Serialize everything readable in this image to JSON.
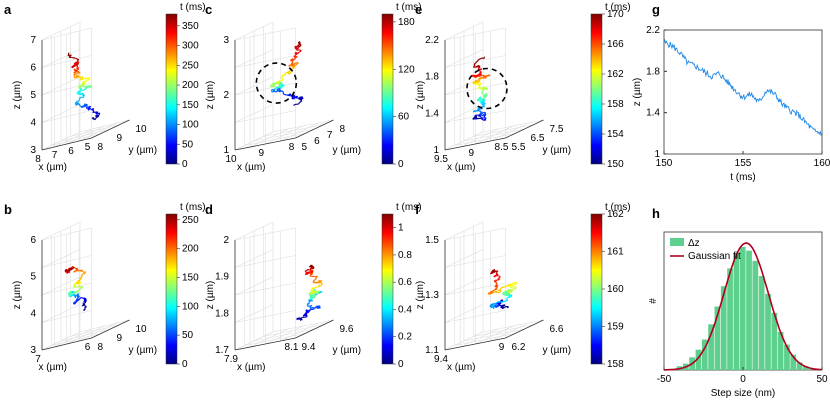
{
  "figure": {
    "panels": [
      "a",
      "b",
      "c",
      "d",
      "e",
      "f",
      "g",
      "h"
    ],
    "colormap": [
      "#00007f",
      "#0000ff",
      "#007fff",
      "#00ffff",
      "#7fff7f",
      "#ffff00",
      "#ff7f00",
      "#ff0000",
      "#7f0000"
    ],
    "circle_color": "#000000",
    "blue_line": "#1e88e5",
    "green_bar": "#5cd08c",
    "red_fit": "#b00020"
  },
  "chart_data": [
    {
      "panel": "a",
      "type": "line3d",
      "axes": {
        "x": {
          "label": "x (µm)",
          "ticks": [
            "5",
            "6",
            "7",
            "8"
          ]
        },
        "y": {
          "label": "y (µm)",
          "ticks": [
            "8",
            "9",
            "10"
          ]
        },
        "z": {
          "label": "z (µm)",
          "ticks": [
            "3",
            "4",
            "5",
            "6",
            "7"
          ]
        }
      },
      "colorbar": {
        "title": "t (ms)",
        "ticks": [
          "0",
          "50",
          "100",
          "150",
          "200",
          "250",
          "300",
          "350"
        ],
        "range": [
          0,
          380
        ]
      },
      "trajectory_seed": 11
    },
    {
      "panel": "b",
      "type": "line3d",
      "axes": {
        "x": {
          "label": "x (µm)",
          "ticks": [
            "6",
            "7"
          ]
        },
        "y": {
          "label": "y (µm)",
          "ticks": [
            "8",
            "9",
            "10"
          ]
        },
        "z": {
          "label": "z (µm)",
          "ticks": [
            "3",
            "4",
            "5",
            "6"
          ]
        }
      },
      "colorbar": {
        "title": "t (ms)",
        "ticks": [
          "0",
          "50",
          "100",
          "150",
          "200",
          "250"
        ],
        "range": [
          0,
          260
        ]
      },
      "trajectory_seed": 23
    },
    {
      "panel": "c",
      "type": "line3d",
      "axes": {
        "x": {
          "label": "x (µm)",
          "ticks": [
            "8",
            "9",
            "10"
          ]
        },
        "y": {
          "label": "y (µm)",
          "ticks": [
            "5",
            "6",
            "7",
            "8"
          ]
        },
        "z": {
          "label": "z (µm)",
          "ticks": [
            "1",
            "2",
            "3"
          ]
        }
      },
      "colorbar": {
        "title": "t (ms)",
        "ticks": [
          "0",
          "60",
          "120",
          "180"
        ],
        "range": [
          0,
          190
        ]
      },
      "highlight_circle": true,
      "trajectory_seed": 37
    },
    {
      "panel": "d",
      "type": "line3d",
      "axes": {
        "x": {
          "label": "x (µm)",
          "ticks": [
            "8.1",
            "7.9"
          ]
        },
        "y": {
          "label": "y (µm)",
          "ticks": [
            "9.4",
            "9.6"
          ]
        },
        "z": {
          "label": "z (µm)",
          "ticks": [
            "1.7",
            "1.8",
            "1.9",
            "2"
          ]
        }
      },
      "colorbar": {
        "title": "t (ms)",
        "ticks": [
          "0",
          "0.2",
          "0.4",
          "0.6",
          "0.8",
          "1"
        ],
        "range": [
          0,
          1.1
        ]
      },
      "trajectory_seed": 41
    },
    {
      "panel": "e",
      "type": "line3d",
      "axes": {
        "x": {
          "label": "x (µm)",
          "ticks": [
            "8.5",
            "9",
            "9.5"
          ]
        },
        "y": {
          "label": "y (µm)",
          "ticks": [
            "5.5",
            "6.5",
            "7.5"
          ]
        },
        "z": {
          "label": "z (µm)",
          "ticks": [
            "1",
            "1.4",
            "1.8",
            "2.2"
          ]
        }
      },
      "colorbar": {
        "title": "t (ms)",
        "ticks": [
          "150",
          "154",
          "158",
          "162",
          "166",
          "170"
        ],
        "range": [
          150,
          170
        ]
      },
      "highlight_circle": true,
      "trajectory_seed": 53
    },
    {
      "panel": "f",
      "type": "line3d",
      "axes": {
        "x": {
          "label": "x (µm)",
          "ticks": [
            "9",
            "9.4"
          ]
        },
        "y": {
          "label": "y (µm)",
          "ticks": [
            "6.2",
            "6.6"
          ]
        },
        "z": {
          "label": "z (µm)",
          "ticks": [
            "1.1",
            "1.3",
            "1.5"
          ]
        }
      },
      "colorbar": {
        "title": "t (ms)",
        "ticks": [
          "158",
          "159",
          "160",
          "161",
          "162"
        ],
        "range": [
          158,
          162
        ]
      },
      "trajectory_seed": 67
    },
    {
      "panel": "g",
      "type": "line",
      "xlabel": "t (ms)",
      "ylabel": "z (µm)",
      "xlim": [
        150,
        160
      ],
      "ylim": [
        1,
        2.2
      ],
      "xticks": [
        "150",
        "155",
        "160"
      ],
      "yticks": [
        "1",
        "1.4",
        "1.8",
        "2.2"
      ],
      "x": [
        150,
        150.5,
        151,
        151.5,
        152,
        152.5,
        153,
        153.5,
        154,
        154.5,
        155,
        155.5,
        156,
        156.5,
        157,
        157.5,
        158,
        158.5,
        159,
        159.5,
        160
      ],
      "y": [
        2.08,
        2.05,
        1.98,
        1.88,
        1.85,
        1.8,
        1.75,
        1.78,
        1.7,
        1.62,
        1.55,
        1.58,
        1.5,
        1.62,
        1.58,
        1.48,
        1.42,
        1.38,
        1.3,
        1.22,
        1.2
      ]
    },
    {
      "panel": "h",
      "type": "bar",
      "xlabel": "Step size (nm)",
      "ylabel": "#",
      "xlim": [
        -50,
        50
      ],
      "xticks": [
        "-50",
        "0",
        "50"
      ],
      "legend": [
        "Δz",
        "Gaussian fit"
      ],
      "legend_position": "top-left",
      "bins_center": [
        -40,
        -36,
        -32,
        -28,
        -24,
        -20,
        -16,
        -12,
        -8,
        -4,
        0,
        4,
        8,
        12,
        16,
        20,
        24,
        28,
        32,
        36,
        40
      ],
      "counts": [
        0.03,
        0.05,
        0.1,
        0.16,
        0.24,
        0.36,
        0.5,
        0.66,
        0.8,
        0.92,
        0.97,
        0.94,
        0.86,
        0.74,
        0.6,
        0.45,
        0.3,
        0.2,
        0.12,
        0.06,
        0.03
      ],
      "fit": {
        "mean": 2,
        "sigma": 14,
        "amplitude": 1.0
      }
    }
  ]
}
